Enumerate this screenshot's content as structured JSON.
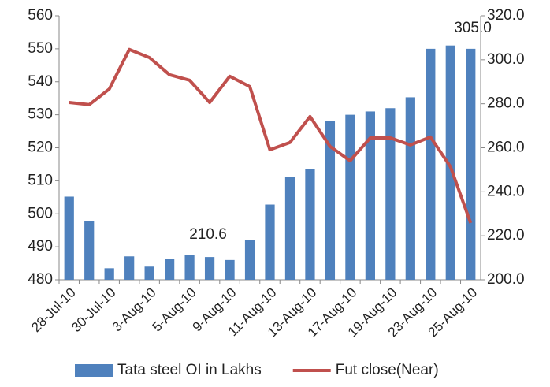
{
  "chart_data": {
    "type": "bar_line",
    "categories": [
      "28-Jul-10",
      null,
      "30-Jul-10",
      null,
      "3-Aug-10",
      null,
      "5-Aug-10",
      null,
      "9-Aug-10",
      null,
      "11-Aug-10",
      null,
      "13-Aug-10",
      null,
      "17-Aug-10",
      null,
      "19-Aug-10",
      null,
      "23-Aug-10",
      null,
      "25-Aug-10"
    ],
    "series": [
      {
        "name": "Tata steel OI in Lakhs",
        "color": "#4f81bd",
        "type": "bar",
        "values": [
          505.2,
          497.9,
          483.5,
          487.1,
          484.0,
          486.4,
          487.5,
          486.9,
          486.0,
          492.0,
          502.8,
          511.2,
          513.5,
          528.0,
          530.0,
          531.0,
          532.0,
          535.3,
          550.0,
          551.0,
          550.0
        ]
      },
      {
        "name": "Fut close(Near)",
        "color": "#c0504d",
        "type": "line",
        "axis": "y2",
        "values": [
          280.6,
          279.6,
          286.7,
          304.7,
          301.0,
          293.2,
          290.7,
          280.6,
          292.5,
          287.8,
          259.1,
          262.4,
          274.2,
          260.6,
          254.1,
          264.5,
          264.5,
          261.3,
          264.9,
          251.3,
          225.8
        ]
      }
    ],
    "annotations": [
      "210.6",
      "305.0"
    ],
    "ylim": [
      480,
      560
    ],
    "yticks": [
      480,
      490,
      500,
      510,
      520,
      530,
      540,
      550,
      560
    ],
    "y2lim": [
      200,
      320
    ],
    "y2ticks": [
      {
        "value": 200,
        "label": "200.0"
      },
      {
        "value": 220,
        "label": "220.0"
      },
      {
        "value": 240,
        "label": "240.0"
      },
      {
        "value": 260,
        "label": "260.0"
      },
      {
        "value": 280,
        "label": "280.0"
      },
      {
        "value": 300,
        "label": "300.0"
      },
      {
        "value": 320,
        "label": "320.0"
      }
    ],
    "legend": "bottom"
  }
}
